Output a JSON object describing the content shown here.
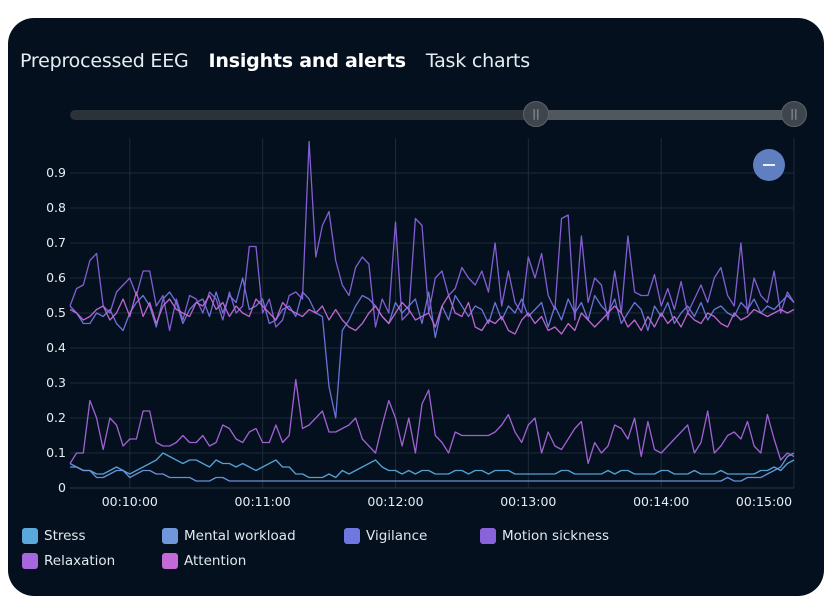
{
  "tabs": [
    {
      "label": "Preprocessed EEG",
      "active": false
    },
    {
      "label": "Insights and alerts",
      "active": true
    },
    {
      "label": "Task charts",
      "active": false
    }
  ],
  "slider": {
    "range_start": 0.62,
    "range_end": 1.0
  },
  "zoom_button": {
    "icon": "minus-icon",
    "color": "#5f7fc0"
  },
  "legend": [
    {
      "label": "Stress",
      "color": "#5aa9dc"
    },
    {
      "label": "Mental workload",
      "color": "#6f97dc"
    },
    {
      "label": "Vigilance",
      "color": "#6f78e0"
    },
    {
      "label": "Motion sickness",
      "color": "#8a63dc"
    },
    {
      "label": "Relaxation",
      "color": "#a866dc"
    },
    {
      "label": "Attention",
      "color": "#c46ad8"
    }
  ],
  "chart_data": {
    "type": "line",
    "title": "",
    "xlabel": "",
    "ylabel": "",
    "xlim": [
      "00:09:33",
      "00:15:00"
    ],
    "ylim": [
      0,
      1.0
    ],
    "x_ticks": [
      "00:10:00",
      "00:11:00",
      "00:12:00",
      "00:13:00",
      "00:14:00",
      "00:15:00"
    ],
    "y_ticks": [
      "0",
      "0.1",
      "0.2",
      "0.3",
      "0.4",
      "0.5",
      "0.6",
      "0.7",
      "0.8",
      "0.9"
    ],
    "grid": true,
    "legend_position": "bottom",
    "x_start": "00:09:33",
    "x_step_seconds": 3,
    "series": [
      {
        "name": "Stress",
        "color": "#5aa9dc",
        "values": [
          0.06,
          0.06,
          0.05,
          0.05,
          0.04,
          0.04,
          0.05,
          0.06,
          0.05,
          0.04,
          0.05,
          0.06,
          0.07,
          0.08,
          0.1,
          0.09,
          0.08,
          0.07,
          0.08,
          0.08,
          0.07,
          0.06,
          0.08,
          0.07,
          0.07,
          0.06,
          0.07,
          0.06,
          0.05,
          0.06,
          0.07,
          0.08,
          0.06,
          0.06,
          0.04,
          0.04,
          0.03,
          0.03,
          0.03,
          0.04,
          0.03,
          0.05,
          0.04,
          0.05,
          0.06,
          0.07,
          0.08,
          0.06,
          0.05,
          0.05,
          0.04,
          0.05,
          0.04,
          0.05,
          0.05,
          0.04,
          0.04,
          0.04,
          0.05,
          0.05,
          0.04,
          0.05,
          0.05,
          0.04,
          0.05,
          0.05,
          0.05,
          0.04,
          0.04,
          0.04,
          0.04,
          0.04,
          0.04,
          0.04,
          0.05,
          0.05,
          0.04,
          0.04,
          0.04,
          0.04,
          0.04,
          0.05,
          0.04,
          0.05,
          0.05,
          0.04,
          0.04,
          0.04,
          0.04,
          0.05,
          0.05,
          0.04,
          0.04,
          0.04,
          0.05,
          0.04,
          0.04,
          0.04,
          0.05,
          0.04,
          0.04,
          0.04,
          0.04,
          0.04,
          0.05,
          0.05,
          0.06,
          0.05,
          0.07,
          0.08
        ]
      },
      {
        "name": "Mental workload",
        "color": "#6f97dc",
        "values": [
          0.07,
          0.06,
          0.05,
          0.05,
          0.03,
          0.03,
          0.04,
          0.05,
          0.05,
          0.03,
          0.04,
          0.05,
          0.05,
          0.04,
          0.04,
          0.03,
          0.03,
          0.03,
          0.03,
          0.02,
          0.02,
          0.02,
          0.03,
          0.03,
          0.02,
          0.02,
          0.02,
          0.02,
          0.02,
          0.02,
          0.02,
          0.02,
          0.02,
          0.02,
          0.02,
          0.02,
          0.02,
          0.02,
          0.02,
          0.02,
          0.02,
          0.02,
          0.02,
          0.02,
          0.02,
          0.02,
          0.02,
          0.02,
          0.02,
          0.02,
          0.02,
          0.02,
          0.02,
          0.02,
          0.02,
          0.02,
          0.02,
          0.02,
          0.02,
          0.02,
          0.02,
          0.02,
          0.02,
          0.02,
          0.02,
          0.02,
          0.02,
          0.02,
          0.02,
          0.02,
          0.02,
          0.02,
          0.02,
          0.02,
          0.02,
          0.02,
          0.02,
          0.02,
          0.02,
          0.02,
          0.02,
          0.02,
          0.02,
          0.02,
          0.02,
          0.02,
          0.02,
          0.02,
          0.02,
          0.02,
          0.02,
          0.02,
          0.02,
          0.02,
          0.02,
          0.02,
          0.02,
          0.02,
          0.02,
          0.03,
          0.02,
          0.02,
          0.03,
          0.03,
          0.03,
          0.04,
          0.05,
          0.06,
          0.09,
          0.1
        ]
      },
      {
        "name": "Vigilance",
        "color": "#6f78e0",
        "values": [
          0.52,
          0.5,
          0.47,
          0.47,
          0.5,
          0.49,
          0.51,
          0.47,
          0.45,
          0.5,
          0.53,
          0.55,
          0.52,
          0.46,
          0.54,
          0.56,
          0.53,
          0.47,
          0.51,
          0.53,
          0.54,
          0.49,
          0.56,
          0.5,
          0.55,
          0.53,
          0.6,
          0.51,
          0.52,
          0.54,
          0.47,
          0.48,
          0.51,
          0.52,
          0.49,
          0.56,
          0.54,
          0.5,
          0.49,
          0.29,
          0.2,
          0.45,
          0.48,
          0.52,
          0.55,
          0.54,
          0.52,
          0.49,
          0.47,
          0.53,
          0.5,
          0.52,
          0.54,
          0.47,
          0.56,
          0.43,
          0.52,
          0.48,
          0.55,
          0.52,
          0.49,
          0.52,
          0.51,
          0.47,
          0.53,
          0.48,
          0.52,
          0.5,
          0.54,
          0.49,
          0.51,
          0.53,
          0.46,
          0.52,
          0.48,
          0.54,
          0.5,
          0.53,
          0.48,
          0.55,
          0.52,
          0.5,
          0.54,
          0.47,
          0.5,
          0.53,
          0.51,
          0.45,
          0.52,
          0.49,
          0.53,
          0.47,
          0.5,
          0.52,
          0.49,
          0.53,
          0.48,
          0.51,
          0.52,
          0.5,
          0.49,
          0.53,
          0.51,
          0.54,
          0.5,
          0.52,
          0.51,
          0.53,
          0.55,
          0.53
        ]
      },
      {
        "name": "Motion sickness",
        "color": "#8a63dc",
        "values": [
          0.52,
          0.57,
          0.58,
          0.65,
          0.67,
          0.52,
          0.5,
          0.56,
          0.58,
          0.6,
          0.55,
          0.62,
          0.62,
          0.52,
          0.55,
          0.45,
          0.54,
          0.48,
          0.55,
          0.54,
          0.5,
          0.56,
          0.54,
          0.48,
          0.56,
          0.5,
          0.52,
          0.69,
          0.69,
          0.5,
          0.54,
          0.46,
          0.48,
          0.55,
          0.56,
          0.54,
          0.99,
          0.66,
          0.75,
          0.79,
          0.65,
          0.58,
          0.55,
          0.63,
          0.66,
          0.64,
          0.46,
          0.54,
          0.5,
          0.76,
          0.48,
          0.5,
          0.77,
          0.75,
          0.5,
          0.6,
          0.62,
          0.55,
          0.57,
          0.63,
          0.6,
          0.58,
          0.62,
          0.56,
          0.7,
          0.52,
          0.62,
          0.53,
          0.5,
          0.66,
          0.6,
          0.67,
          0.55,
          0.51,
          0.77,
          0.78,
          0.48,
          0.72,
          0.53,
          0.6,
          0.58,
          0.48,
          0.62,
          0.5,
          0.72,
          0.56,
          0.55,
          0.55,
          0.61,
          0.52,
          0.57,
          0.51,
          0.59,
          0.5,
          0.54,
          0.58,
          0.53,
          0.6,
          0.63,
          0.55,
          0.52,
          0.7,
          0.5,
          0.6,
          0.55,
          0.53,
          0.62,
          0.5,
          0.56,
          0.53
        ]
      },
      {
        "name": "Relaxation",
        "color": "#a866dc",
        "values": [
          0.07,
          0.1,
          0.1,
          0.25,
          0.2,
          0.11,
          0.2,
          0.18,
          0.12,
          0.14,
          0.14,
          0.22,
          0.22,
          0.13,
          0.12,
          0.12,
          0.13,
          0.15,
          0.13,
          0.13,
          0.15,
          0.12,
          0.13,
          0.18,
          0.17,
          0.14,
          0.13,
          0.16,
          0.17,
          0.13,
          0.13,
          0.18,
          0.13,
          0.15,
          0.31,
          0.17,
          0.18,
          0.2,
          0.22,
          0.16,
          0.16,
          0.17,
          0.18,
          0.2,
          0.14,
          0.12,
          0.1,
          0.18,
          0.25,
          0.2,
          0.12,
          0.2,
          0.1,
          0.24,
          0.28,
          0.15,
          0.13,
          0.1,
          0.16,
          0.15,
          0.15,
          0.15,
          0.15,
          0.15,
          0.16,
          0.18,
          0.21,
          0.16,
          0.13,
          0.18,
          0.2,
          0.1,
          0.16,
          0.12,
          0.11,
          0.14,
          0.17,
          0.19,
          0.07,
          0.13,
          0.1,
          0.12,
          0.18,
          0.17,
          0.14,
          0.2,
          0.09,
          0.19,
          0.11,
          0.1,
          0.12,
          0.14,
          0.16,
          0.18,
          0.1,
          0.13,
          0.22,
          0.1,
          0.12,
          0.15,
          0.16,
          0.14,
          0.19,
          0.12,
          0.1,
          0.21,
          0.14,
          0.08,
          0.1,
          0.09
        ]
      },
      {
        "name": "Attention",
        "color": "#c46ad8",
        "values": [
          0.51,
          0.5,
          0.48,
          0.49,
          0.51,
          0.52,
          0.48,
          0.5,
          0.54,
          0.49,
          0.56,
          0.49,
          0.53,
          0.47,
          0.52,
          0.54,
          0.51,
          0.5,
          0.49,
          0.53,
          0.52,
          0.55,
          0.51,
          0.53,
          0.49,
          0.52,
          0.5,
          0.49,
          0.54,
          0.52,
          0.5,
          0.48,
          0.53,
          0.51,
          0.5,
          0.49,
          0.51,
          0.5,
          0.52,
          0.48,
          0.51,
          0.48,
          0.46,
          0.45,
          0.47,
          0.5,
          0.52,
          0.49,
          0.47,
          0.5,
          0.53,
          0.51,
          0.48,
          0.49,
          0.5,
          0.46,
          0.52,
          0.55,
          0.5,
          0.49,
          0.53,
          0.46,
          0.45,
          0.48,
          0.47,
          0.49,
          0.45,
          0.44,
          0.48,
          0.5,
          0.47,
          0.49,
          0.45,
          0.46,
          0.44,
          0.47,
          0.45,
          0.5,
          0.48,
          0.46,
          0.48,
          0.5,
          0.52,
          0.5,
          0.46,
          0.48,
          0.45,
          0.49,
          0.46,
          0.5,
          0.47,
          0.49,
          0.46,
          0.5,
          0.48,
          0.47,
          0.5,
          0.49,
          0.47,
          0.46,
          0.5,
          0.48,
          0.49,
          0.51,
          0.5,
          0.49,
          0.5,
          0.51,
          0.5,
          0.51
        ]
      }
    ]
  }
}
